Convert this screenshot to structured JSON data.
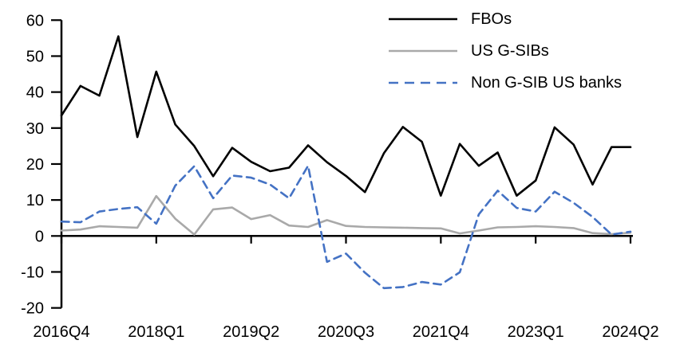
{
  "chart_data": {
    "type": "line",
    "title": "",
    "xlabel": "",
    "ylabel": "",
    "grid": false,
    "background": "#FFFFFF",
    "axis_color": "#000000",
    "ylim": [
      -20,
      60
    ],
    "y_ticks": [
      60,
      50,
      40,
      30,
      20,
      10,
      0,
      -10,
      -20
    ],
    "x_tick_labels": [
      "2016Q4",
      "2018Q1",
      "2019Q2",
      "2020Q3",
      "2021Q4",
      "2023Q1",
      "2024Q2"
    ],
    "x_tick_indices": [
      0,
      5,
      10,
      15,
      20,
      25,
      30
    ],
    "x_categories": [
      "2016Q4",
      "2017Q1",
      "2017Q2",
      "2017Q3",
      "2017Q4",
      "2018Q1",
      "2018Q2",
      "2018Q3",
      "2018Q4",
      "2019Q1",
      "2019Q2",
      "2019Q3",
      "2019Q4",
      "2020Q1",
      "2020Q2",
      "2020Q3",
      "2020Q4",
      "2021Q1",
      "2021Q2",
      "2021Q3",
      "2021Q4",
      "2022Q1",
      "2022Q2",
      "2022Q3",
      "2022Q4",
      "2023Q1",
      "2023Q2",
      "2023Q3",
      "2023Q4",
      "2024Q1",
      "2024Q2"
    ],
    "legend_position": "top-right",
    "series": [
      {
        "name": "FBOs",
        "color": "#000000",
        "style": "solid",
        "values": [
          33.5,
          41.7,
          39.0,
          55.5,
          27.5,
          45.7,
          31.0,
          25.0,
          16.6,
          24.5,
          20.6,
          18.0,
          19.0,
          25.2,
          20.5,
          16.7,
          12.2,
          23.0,
          30.3,
          26.2,
          11.2,
          25.6,
          19.5,
          23.2,
          11.2,
          15.4,
          30.2,
          25.4,
          14.3,
          24.7,
          24.7
        ]
      },
      {
        "name": "US G-SIBs",
        "color": "#A9A9A9",
        "style": "solid",
        "values": [
          1.5,
          1.8,
          2.7,
          2.5,
          2.3,
          11.1,
          4.8,
          0.4,
          7.4,
          7.9,
          4.7,
          5.8,
          2.9,
          2.5,
          4.4,
          2.8,
          2.5,
          2.4,
          2.3,
          2.2,
          2.1,
          0.7,
          1.5,
          2.4,
          2.5,
          2.7,
          2.5,
          2.2,
          0.8,
          0.5,
          0.9
        ]
      },
      {
        "name": "Non G-SIB US banks",
        "color": "#4472C4",
        "style": "dashed",
        "values": [
          4.0,
          3.8,
          6.8,
          7.5,
          8.0,
          3.4,
          14.0,
          19.4,
          10.5,
          16.8,
          16.2,
          14.3,
          10.5,
          19.5,
          -7.2,
          -4.9,
          -10.2,
          -14.5,
          -14.2,
          -12.8,
          -13.5,
          -10.1,
          6.0,
          12.6,
          7.8,
          6.8,
          12.3,
          9.2,
          5.3,
          0.4,
          1.2
        ]
      }
    ]
  }
}
